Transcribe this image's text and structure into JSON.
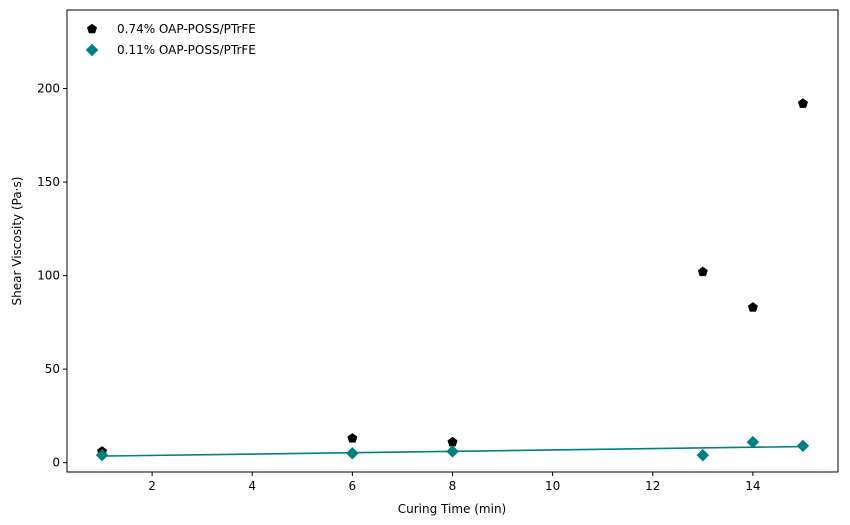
{
  "chart_data": {
    "type": "scatter",
    "title": "",
    "xlabel": "Curing Time (min)",
    "ylabel": "Shear Viscosity (Pa·s)",
    "xlim": [
      0.3,
      15.7
    ],
    "ylim": [
      -5,
      242
    ],
    "xticks": [
      2,
      4,
      6,
      8,
      10,
      12,
      14
    ],
    "yticks": [
      0,
      50,
      100,
      150,
      200
    ],
    "grid": false,
    "legend_position": "top-left",
    "series": [
      {
        "name": "0.74% OAP-POSS/PTrFE",
        "marker": "pentagon",
        "color": "#000000",
        "x": [
          1,
          6,
          8,
          13,
          14,
          15
        ],
        "y": [
          6,
          13,
          11,
          102,
          83,
          192
        ]
      },
      {
        "name": "0.11% OAP-POSS/PTrFE",
        "marker": "diamond",
        "color": "#008080",
        "x": [
          1,
          6,
          8,
          13,
          14,
          15
        ],
        "y": [
          4,
          5,
          6,
          4,
          11,
          9
        ],
        "fit_line": {
          "x": [
            1,
            15
          ],
          "y": [
            3.5,
            8.6
          ]
        }
      }
    ]
  }
}
